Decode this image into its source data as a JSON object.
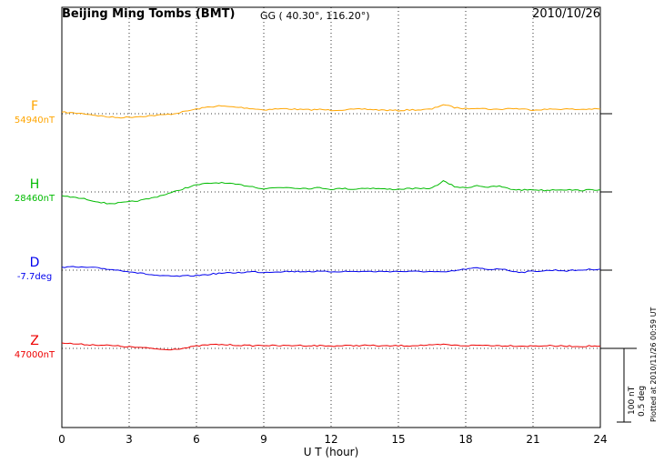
{
  "chart_data": {
    "type": "line",
    "title": "Beijing Ming Tombs (BMT)",
    "station_coords": "GG ( 40.30°, 116.20°)",
    "date": "2010/10/26",
    "xlabel": "U T (hour)",
    "xlim": [
      0,
      24
    ],
    "x_ticks": [
      0,
      3,
      6,
      9,
      12,
      15,
      18,
      21,
      24
    ],
    "grid": "dotted vertical lines every 3 hours; dotted horizontal baseline per trace",
    "x_hours": [
      0,
      0.5,
      1,
      1.5,
      2,
      2.5,
      3,
      3.5,
      4,
      4.5,
      5,
      5.5,
      6,
      6.5,
      7,
      7.5,
      8,
      8.5,
      9,
      9.5,
      10,
      10.5,
      11,
      11.5,
      12,
      12.5,
      13,
      13.5,
      14,
      14.5,
      15,
      15.5,
      16,
      16.5,
      17,
      17.5,
      18,
      18.5,
      19,
      19.5,
      20,
      20.5,
      21,
      21.5,
      22,
      22.5,
      23,
      23.5,
      24
    ],
    "series": [
      {
        "name": "F",
        "unit": "nT",
        "baseline_label": "54940nT",
        "baseline_value": 54940,
        "color": "#FFA500",
        "deviation_from_baseline": [
          2,
          1,
          0,
          -2,
          -4,
          -5,
          -4.5,
          -3.5,
          -2.5,
          -1.5,
          0,
          3,
          6,
          8.5,
          10,
          9,
          8,
          6.5,
          5,
          6,
          6.5,
          5.5,
          5,
          5.5,
          4.5,
          5,
          5.5,
          6,
          5,
          4.5,
          4,
          5,
          5,
          6,
          12,
          8,
          6.5,
          7.5,
          6,
          5.5,
          7,
          6,
          5,
          5.5,
          6,
          6,
          5.5,
          6,
          6
        ]
      },
      {
        "name": "H",
        "unit": "nT",
        "baseline_label": "28460nT",
        "baseline_value": 28460,
        "color": "#00BB00",
        "deviation_from_baseline": [
          -5,
          -7,
          -9,
          -12,
          -15,
          -14.5,
          -13,
          -11,
          -8,
          -4,
          0,
          5,
          9,
          11,
          12,
          10.5,
          9,
          7,
          4,
          5.5,
          6,
          5,
          4.5,
          5.5,
          3.5,
          4.5,
          3.5,
          5,
          4.5,
          3.5,
          3.5,
          4.5,
          4,
          5,
          14,
          7,
          5,
          8.5,
          6,
          7.5,
          3.5,
          2.5,
          3,
          2,
          3,
          3,
          2,
          2.5,
          3
        ]
      },
      {
        "name": "D",
        "unit": "deg",
        "baseline_label": "-7.7deg",
        "baseline_value": -7.7,
        "color": "#0000EE",
        "deviation_from_baseline": [
          0.02,
          0.02,
          0.018,
          0.015,
          0.008,
          0,
          -0.008,
          -0.02,
          -0.03,
          -0.038,
          -0.04,
          -0.038,
          -0.035,
          -0.028,
          -0.02,
          -0.018,
          -0.015,
          -0.01,
          -0.014,
          -0.01,
          -0.008,
          -0.009,
          -0.008,
          -0.009,
          -0.01,
          -0.008,
          -0.009,
          -0.008,
          -0.009,
          -0.008,
          -0.008,
          -0.009,
          -0.008,
          -0.01,
          -0.014,
          -0.004,
          0.007,
          0.014,
          0.004,
          0.01,
          -0.004,
          -0.014,
          -0.007,
          -0.004,
          0,
          -0.004,
          0,
          0.004,
          0.007
        ]
      },
      {
        "name": "Z",
        "unit": "nT",
        "baseline_label": "47000nT",
        "baseline_value": 47000,
        "color": "#EE0000",
        "deviation_from_baseline": [
          7,
          6,
          5,
          4.5,
          4,
          3,
          2,
          1,
          0,
          -1.5,
          -1,
          0.5,
          3,
          4.5,
          5,
          4.5,
          4,
          3.5,
          4,
          3.5,
          3.5,
          4,
          3.5,
          3.5,
          3,
          3.5,
          3.5,
          4,
          3.5,
          3,
          3.5,
          3.5,
          4,
          4,
          5,
          4,
          3.5,
          4,
          4,
          3.5,
          3.5,
          3,
          3,
          3.5,
          3,
          3,
          2.5,
          3,
          3
        ]
      }
    ],
    "scale_bar": {
      "nT_label": "100 nT",
      "deg_label": "0.5 deg",
      "nT_value": 100,
      "deg_value": 0.5
    },
    "plotted_at": "Plotted at 2010/11/26 00:59 UT"
  }
}
